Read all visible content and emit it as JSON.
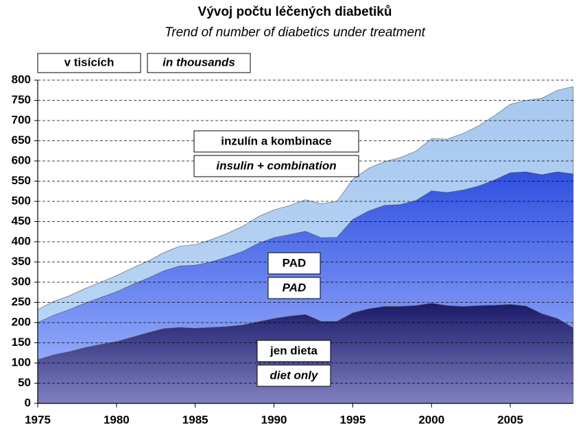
{
  "chart_data": {
    "type": "stacked-area",
    "title": "Vývoj počtu léčených diabetiků",
    "subtitle": "Trend of number of diabetics under treatment",
    "unit_label": "v tisících",
    "unit_label_en": "in thousands",
    "x": [
      1975,
      1976,
      1977,
      1978,
      1979,
      1980,
      1981,
      1982,
      1983,
      1984,
      1985,
      1986,
      1987,
      1988,
      1989,
      1990,
      1991,
      1992,
      1993,
      1994,
      1995,
      1996,
      1997,
      1998,
      1999,
      2000,
      2001,
      2002,
      2003,
      2004,
      2005,
      2006,
      2007,
      2008,
      2009
    ],
    "series": [
      {
        "name": "jen dieta",
        "name_en": "diet only",
        "color": "#3a3a90",
        "values": [
          108,
          120,
          128,
          138,
          146,
          153,
          164,
          175,
          185,
          188,
          186,
          188,
          190,
          194,
          202,
          210,
          216,
          220,
          203,
          203,
          224,
          234,
          240,
          240,
          242,
          248,
          242,
          240,
          242,
          243,
          245,
          241,
          222,
          210,
          187
        ]
      },
      {
        "name": "PAD",
        "name_en": "PAD",
        "color": "#5b7cf0",
        "values": [
          92,
          98,
          104,
          110,
          116,
          123,
          130,
          135,
          143,
          152,
          156,
          162,
          172,
          182,
          194,
          200,
          202,
          206,
          207,
          208,
          231,
          242,
          250,
          252,
          260,
          278,
          280,
          288,
          296,
          310,
          326,
          332,
          344,
          363,
          381
        ]
      },
      {
        "name": "inzulín a kombinace",
        "name_en": "insulin + combination",
        "color": "#aecbf0",
        "values": [
          32,
          34,
          34,
          36,
          38,
          40,
          41,
          42,
          45,
          49,
          51,
          55,
          58,
          62,
          66,
          69,
          72,
          78,
          84,
          89,
          99,
          106,
          108,
          116,
          122,
          129,
          132,
          140,
          149,
          159,
          169,
          177,
          189,
          202,
          216
        ]
      }
    ],
    "xlim": [
      1975,
      2009
    ],
    "xticks": [
      1975,
      1980,
      1985,
      1990,
      1995,
      2000,
      2005
    ],
    "ylim": [
      0,
      800
    ],
    "yticks": [
      0,
      50,
      100,
      150,
      200,
      250,
      300,
      350,
      400,
      450,
      500,
      550,
      600,
      650,
      700,
      750,
      800
    ],
    "grid": true
  }
}
